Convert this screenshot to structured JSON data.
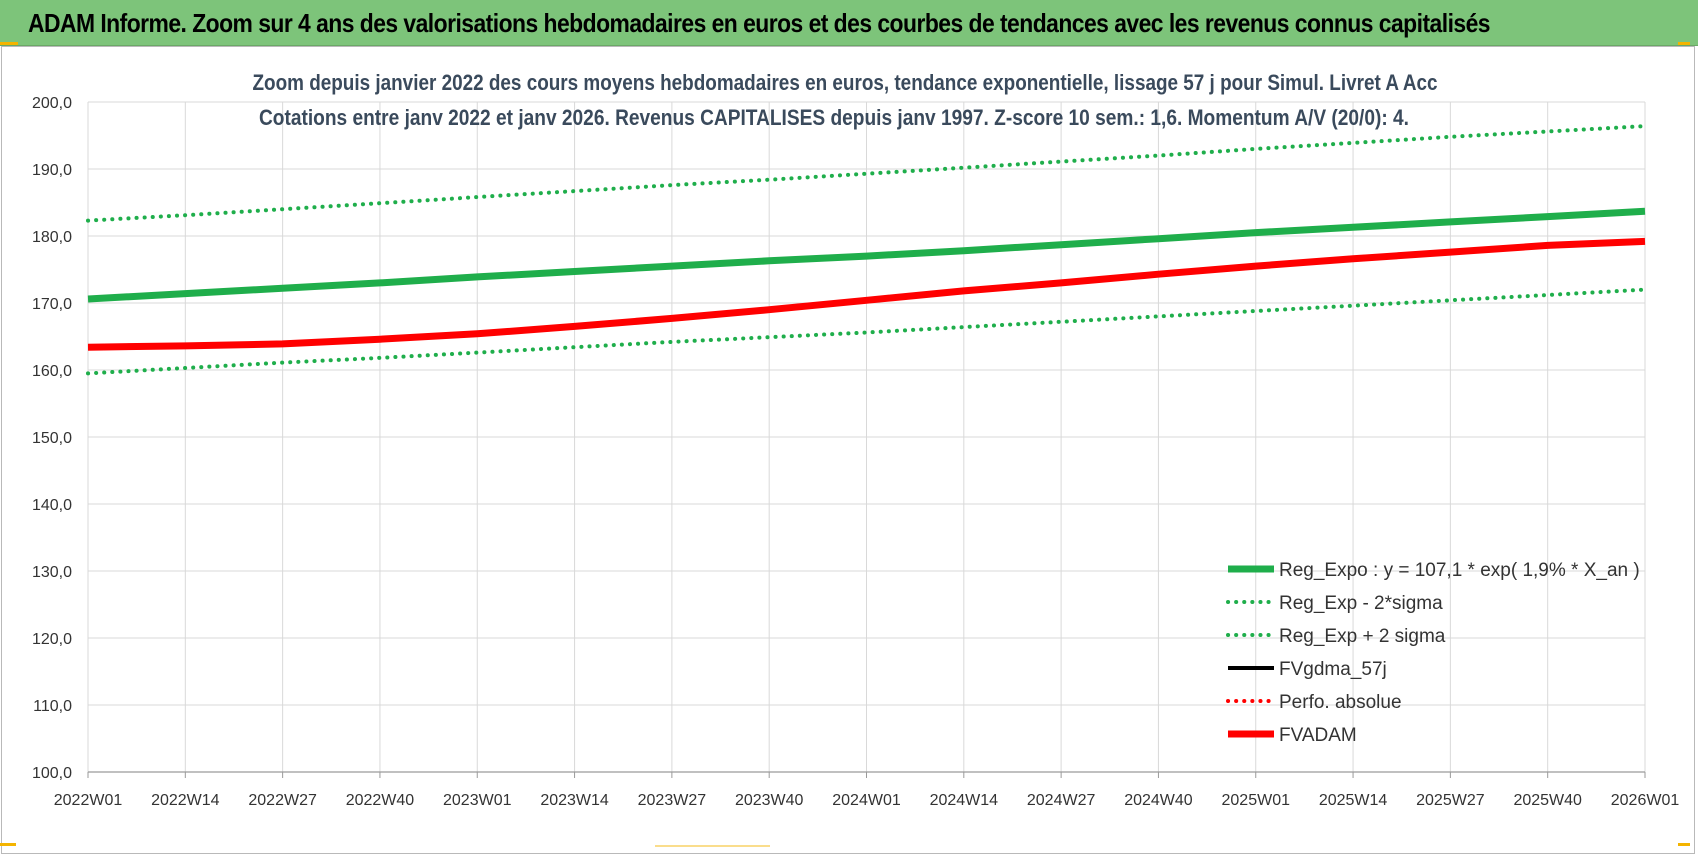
{
  "banner": {
    "title": "ADAM Informe. Zoom sur 4 ans des valorisations hebdomadaires en euros et des courbes de tendances avec les revenus connus capitalisés"
  },
  "colors": {
    "banner_bg": "#7dc47a",
    "green": "#1fae4b",
    "red": "#ff0000",
    "black": "#000000",
    "grid": "#d9d9d9",
    "accent_corner": "#f4b400"
  },
  "chart_data": {
    "type": "line",
    "title": [
      "Zoom depuis janvier 2022 des cours moyens hebdomadaires en euros, tendance exponentielle, lissage 57 j pour Simul. Livret A Acc",
      "Cotations entre janv 2022 et janv 2026. Revenus CAPITALISES depuis janv 1997. Z-score 10 sem.: 1,6. Momentum A/V (20/0): 4."
    ],
    "xlabel": "",
    "ylabel": "",
    "ylim": [
      100,
      200
    ],
    "y_ticks": [
      "100,0",
      "110,0",
      "120,0",
      "130,0",
      "140,0",
      "150,0",
      "160,0",
      "170,0",
      "180,0",
      "190,0",
      "200,0"
    ],
    "x_ticks": [
      "2022W01",
      "2022W14",
      "2022W27",
      "2022W40",
      "2023W01",
      "2023W14",
      "2023W27",
      "2023W40",
      "2024W01",
      "2024W14",
      "2024W27",
      "2024W40",
      "2025W01",
      "2025W14",
      "2025W27",
      "2025W40",
      "2026W01"
    ],
    "grid": true,
    "legend_position": "bottom-right",
    "series": [
      {
        "name": "Reg_Expo : y = 107,1 * exp( 1,9% *  X_an )",
        "style": "solid-thick",
        "color": "#1fae4b",
        "values": [
          170.6,
          171.4,
          172.2,
          173.0,
          173.9,
          174.7,
          175.5,
          176.3,
          177.0,
          177.8,
          178.7,
          179.6,
          180.5,
          181.3,
          182.1,
          182.9,
          183.7
        ]
      },
      {
        "name": "Reg_Exp - 2*sigma",
        "style": "dotted",
        "color": "#1fae4b",
        "values": [
          159.5,
          160.3,
          161.1,
          161.8,
          162.6,
          163.4,
          164.2,
          164.9,
          165.6,
          166.4,
          167.2,
          168.0,
          168.8,
          169.6,
          170.4,
          171.2,
          172.0
        ]
      },
      {
        "name": "Reg_Exp + 2 sigma",
        "style": "dotted",
        "color": "#1fae4b",
        "values": [
          182.3,
          183.1,
          184.0,
          184.9,
          185.8,
          186.7,
          187.6,
          188.4,
          189.3,
          190.2,
          191.1,
          192.0,
          193.0,
          193.9,
          194.8,
          195.6,
          196.4
        ]
      },
      {
        "name": "FVgdma_57j",
        "style": "solid",
        "color": "#000000",
        "values": []
      },
      {
        "name": "Perfo. absolue",
        "style": "dotted",
        "color": "#ff0000",
        "values": []
      },
      {
        "name": "FVADAM",
        "style": "solid-thick",
        "color": "#ff0000",
        "values": [
          163.4,
          163.6,
          163.9,
          164.6,
          165.4,
          166.5,
          167.7,
          169.0,
          170.4,
          171.8,
          173.0,
          174.3,
          175.5,
          176.6,
          177.6,
          178.6,
          179.2
        ]
      }
    ]
  }
}
